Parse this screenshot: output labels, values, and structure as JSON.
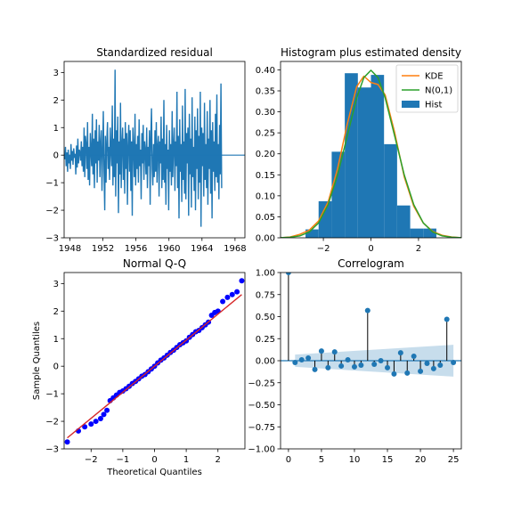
{
  "colors": {
    "blue": "#1f77b4",
    "orange": "#ff7f0e",
    "green": "#2ca02c",
    "red": "#d62728",
    "qq_points": "#0000ff",
    "band": "#aec7e8"
  },
  "chart_data": [
    {
      "type": "line",
      "title": "Standardized residual",
      "xlabel": "",
      "ylabel": "",
      "xlim": [
        1947.3,
        1969.2
      ],
      "ylim": [
        -3.0,
        3.4
      ],
      "xticks": [
        1948,
        1952,
        1956,
        1960,
        1964,
        1968
      ],
      "xtick_labels": [
        "1948",
        "1952",
        "1956",
        "1960",
        "1964",
        "1968"
      ],
      "yticks": [
        -3,
        -2,
        -1,
        0,
        1,
        2,
        3
      ],
      "ytick_labels": [
        "−3",
        "−2",
        "−1",
        "0",
        "1",
        "2",
        "3"
      ],
      "hline": 0,
      "series": [
        {
          "x_start": 1947.3,
          "x_step": 0.08333,
          "values": [
            0.05,
            -0.15,
            0.3,
            -0.4,
            0.1,
            -0.6,
            0.2,
            -0.3,
            0.0,
            -0.5,
            0.4,
            -0.2,
            0.15,
            -0.35,
            0.25,
            -0.1,
            0.05,
            -0.7,
            0.35,
            -0.45,
            0.6,
            -0.3,
            0.2,
            0.1,
            -0.2,
            0.5,
            -0.4,
            0.3,
            -0.6,
            1.0,
            -0.8,
            0.7,
            0.4,
            -0.5,
            1.2,
            -0.9,
            0.3,
            -1.1,
            0.8,
            0.2,
            -0.4,
            1.5,
            -0.7,
            0.6,
            -1.2,
            0.9,
            -0.3,
            1.3,
            -1.0,
            0.5,
            -0.2,
            1.1,
            -0.8,
            0.4,
            0.9,
            -1.3,
            0.2,
            1.6,
            -0.6,
            -2.0,
            0.7,
            -1.0,
            0.5,
            1.2,
            -0.5,
            0.3,
            -0.9,
            1.0,
            0.2,
            -0.4,
            1.8,
            -1.1,
            0.6,
            -0.8,
            3.1,
            -1.5,
            0.9,
            -0.3,
            1.4,
            -2.1,
            0.5,
            -0.7,
            1.9,
            -1.2,
            0.4,
            1.0,
            -0.9,
            0.6,
            -1.4,
            1.2,
            -0.5,
            0.8,
            -1.8,
            0.3,
            1.1,
            -0.6,
            0.9,
            -1.3,
            0.5,
            -2.2,
            1.0,
            0.3,
            -0.8,
            1.5,
            -1.1,
            0.4,
            -0.5,
            0.7,
            -1.0,
            1.3,
            -0.4,
            0.2,
            -1.6,
            0.8,
            -0.3,
            1.1,
            -0.9,
            0.5,
            0.2,
            -0.7,
            1.0,
            -1.2,
            0.3,
            -0.4,
            0.9,
            -1.8,
            0.6,
            1.7,
            -0.5,
            -1.1,
            0.4,
            -0.8,
            0.9,
            -0.6,
            1.2,
            -1.0,
            0.3,
            0.7,
            -1.5,
            0.5,
            -0.3,
            1.4,
            -1.2,
            0.6,
            -0.9,
            2.0,
            -1.0,
            0.4,
            -1.8,
            1.1,
            -0.5,
            0.2,
            -2.0,
            0.9,
            -0.6,
            0.4,
            -1.1,
            1.6,
            -0.8,
            0.3,
            1.0,
            -1.3,
            0.5,
            -0.4,
            2.3,
            -1.2,
            0.7,
            -2.3,
            1.3,
            -0.6,
            0.4,
            -1.7,
            1.8,
            -0.9,
            0.5,
            -1.4,
            2.4,
            -1.6,
            0.8,
            -0.3,
            1.0,
            -2.2,
            1.5,
            -0.7,
            0.6,
            -1.9,
            2.1,
            -0.8,
            0.3,
            -1.3,
            1.4,
            -2.0,
            0.9,
            -0.5,
            1.7,
            -1.6,
            0.7,
            -1.0,
            2.3,
            -2.6,
            1.0,
            -0.4,
            0.8,
            -1.5,
            1.9,
            -0.9,
            0.4,
            -1.2,
            1.6,
            -1.8,
            0.6,
            -0.5,
            2.0,
            -1.4,
            0.9,
            -2.3,
            1.2,
            -0.6,
            0.5,
            -1.3,
            1.5,
            -0.8,
            2.2,
            -1.0,
            0.4,
            -1.6,
            1.1,
            -0.7,
            2.6,
            -1.2
          ]
        }
      ]
    },
    {
      "type": "bar",
      "title": "Histogram plus estimated density",
      "xlabel": "",
      "ylabel": "",
      "xlim": [
        -3.8,
        3.8
      ],
      "ylim": [
        0,
        0.42
      ],
      "xticks": [
        -2,
        0,
        2
      ],
      "xtick_labels": [
        "−2",
        "0",
        "2"
      ],
      "yticks": [
        0.0,
        0.05,
        0.1,
        0.15,
        0.2,
        0.25,
        0.3,
        0.35,
        0.4
      ],
      "ytick_labels": [
        "0.00",
        "0.05",
        "0.10",
        "0.15",
        "0.20",
        "0.25",
        "0.30",
        "0.35",
        "0.40"
      ],
      "bin_edges": [
        -2.75,
        -2.2,
        -1.65,
        -1.1,
        -0.55,
        0.0,
        0.55,
        1.1,
        1.65,
        2.2,
        2.75
      ],
      "values": [
        0.02,
        0.087,
        0.205,
        0.392,
        0.358,
        0.388,
        0.223,
        0.077,
        0.022,
        0.022
      ],
      "series": [
        {
          "name": "KDE",
          "color_key": "orange",
          "x": [
            -3.8,
            -3.4,
            -3.0,
            -2.6,
            -2.2,
            -1.8,
            -1.4,
            -1.0,
            -0.6,
            -0.3,
            0.0,
            0.3,
            0.6,
            1.0,
            1.4,
            1.8,
            2.2,
            2.6,
            3.0,
            3.4,
            3.8
          ],
          "values": [
            0.0,
            0.002,
            0.008,
            0.018,
            0.04,
            0.085,
            0.165,
            0.27,
            0.36,
            0.385,
            0.37,
            0.365,
            0.34,
            0.25,
            0.145,
            0.075,
            0.035,
            0.015,
            0.006,
            0.002,
            0.0
          ]
        },
        {
          "name": "N(0,1)",
          "color_key": "green",
          "x": [
            -3.8,
            -3.4,
            -3.0,
            -2.6,
            -2.2,
            -1.8,
            -1.4,
            -1.0,
            -0.6,
            -0.3,
            0.0,
            0.3,
            0.6,
            1.0,
            1.4,
            1.8,
            2.2,
            2.6,
            3.0,
            3.4,
            3.8
          ],
          "values": [
            0.0003,
            0.0012,
            0.0044,
            0.0136,
            0.0355,
            0.079,
            0.1497,
            0.242,
            0.3332,
            0.3814,
            0.3989,
            0.3814,
            0.3332,
            0.242,
            0.1497,
            0.079,
            0.0355,
            0.0136,
            0.0044,
            0.0012,
            0.0003
          ]
        }
      ],
      "legend": {
        "placement": "top-right",
        "entries": [
          "KDE",
          "N(0,1)",
          "Hist"
        ]
      }
    },
    {
      "type": "scatter",
      "title": "Normal Q-Q",
      "xlabel": "Theoretical Quantiles",
      "ylabel": "Sample Quantiles",
      "xlim": [
        -2.85,
        2.85
      ],
      "ylim": [
        -3.0,
        3.4
      ],
      "xticks": [
        -2,
        -1,
        0,
        1,
        2
      ],
      "xtick_labels": [
        "−2",
        "−1",
        "0",
        "1",
        "2"
      ],
      "yticks": [
        -3,
        -2,
        -1,
        0,
        1,
        2,
        3
      ],
      "ytick_labels": [
        "−3",
        "−2",
        "−1",
        "0",
        "1",
        "2",
        "3"
      ],
      "reference_line": {
        "x": [
          -2.75,
          2.75
        ],
        "y": [
          -2.6,
          2.6
        ]
      },
      "x": [
        -2.75,
        -2.4,
        -2.2,
        -2.0,
        -1.85,
        -1.7,
        -1.6,
        -1.5,
        -1.4,
        -1.3,
        -1.2,
        -1.1,
        -1.0,
        -0.9,
        -0.8,
        -0.7,
        -0.6,
        -0.5,
        -0.4,
        -0.3,
        -0.2,
        -0.1,
        0.0,
        0.1,
        0.2,
        0.3,
        0.4,
        0.5,
        0.6,
        0.7,
        0.8,
        0.9,
        1.0,
        1.1,
        1.2,
        1.3,
        1.4,
        1.5,
        1.6,
        1.7,
        1.8,
        1.9,
        2.0,
        2.15,
        2.3,
        2.45,
        2.6,
        2.75
      ],
      "values": [
        -2.75,
        -2.35,
        -2.2,
        -2.1,
        -2.0,
        -1.9,
        -1.75,
        -1.6,
        -1.25,
        -1.15,
        -1.05,
        -0.95,
        -0.9,
        -0.82,
        -0.73,
        -0.63,
        -0.55,
        -0.46,
        -0.36,
        -0.3,
        -0.2,
        -0.1,
        0.0,
        0.12,
        0.22,
        0.3,
        0.4,
        0.5,
        0.58,
        0.68,
        0.78,
        0.85,
        0.92,
        1.05,
        1.15,
        1.25,
        1.3,
        1.4,
        1.5,
        1.6,
        1.85,
        1.95,
        2.0,
        2.35,
        2.5,
        2.6,
        2.7,
        3.1
      ]
    },
    {
      "type": "scatter",
      "title": "Correlogram",
      "xlabel": "",
      "ylabel": "",
      "xlim": [
        -1.2,
        26.2
      ],
      "ylim": [
        -1.0,
        1.0
      ],
      "xticks": [
        0,
        5,
        10,
        15,
        20,
        25
      ],
      "xtick_labels": [
        "0",
        "5",
        "10",
        "15",
        "20",
        "25"
      ],
      "yticks": [
        -1.0,
        -0.75,
        -0.5,
        -0.25,
        0.0,
        0.25,
        0.5,
        0.75,
        1.0
      ],
      "ytick_labels": [
        "−1.00",
        "−0.75",
        "−0.50",
        "−0.25",
        "0.00",
        "0.25",
        "0.50",
        "0.75",
        "1.00"
      ],
      "x": [
        0,
        1,
        2,
        3,
        4,
        5,
        6,
        7,
        8,
        9,
        10,
        11,
        12,
        13,
        14,
        15,
        16,
        17,
        18,
        19,
        20,
        21,
        22,
        23,
        24,
        25
      ],
      "values": [
        1.0,
        -0.02,
        0.01,
        0.03,
        -0.1,
        0.11,
        -0.08,
        0.1,
        -0.06,
        0.01,
        -0.07,
        -0.05,
        0.57,
        -0.04,
        0.0,
        -0.08,
        -0.15,
        0.09,
        -0.14,
        0.05,
        -0.12,
        -0.03,
        -0.09,
        -0.05,
        0.47,
        -0.02
      ],
      "confidence_band": {
        "x": [
          1,
          25
        ],
        "upper": [
          0.07,
          0.18
        ],
        "lower": [
          -0.07,
          -0.18
        ]
      }
    }
  ]
}
